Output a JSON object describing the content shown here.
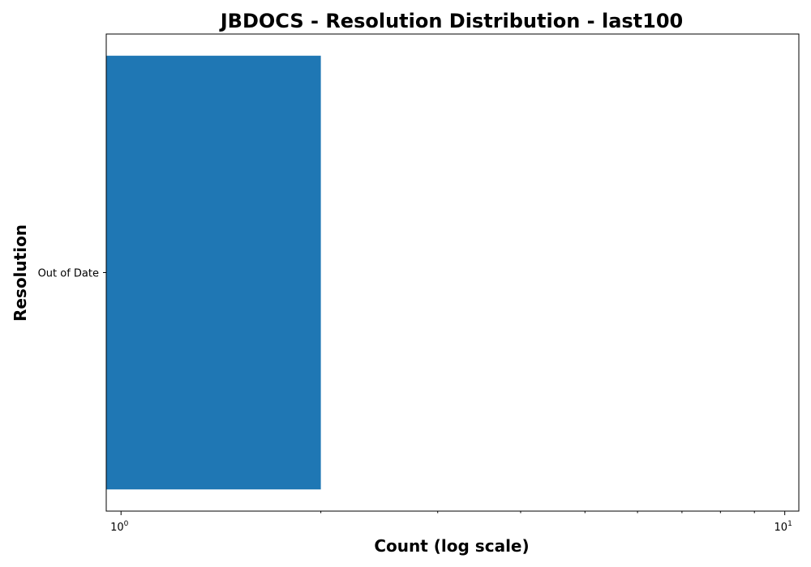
{
  "chart_data": {
    "type": "bar",
    "orientation": "horizontal",
    "title": "JBDOCS - Resolution Distribution - last100",
    "xlabel": "Count (log scale)",
    "ylabel": "Resolution",
    "x_scale": "log",
    "xlim": [
      0.95,
      10.5
    ],
    "categories": [
      "Out of Date"
    ],
    "values": [
      2
    ],
    "x_ticks": [
      {
        "base": "10",
        "exp": "0",
        "value": 1
      },
      {
        "base": "10",
        "exp": "1",
        "value": 10
      }
    ],
    "grid": false,
    "bar_color": "#1f77b4"
  }
}
